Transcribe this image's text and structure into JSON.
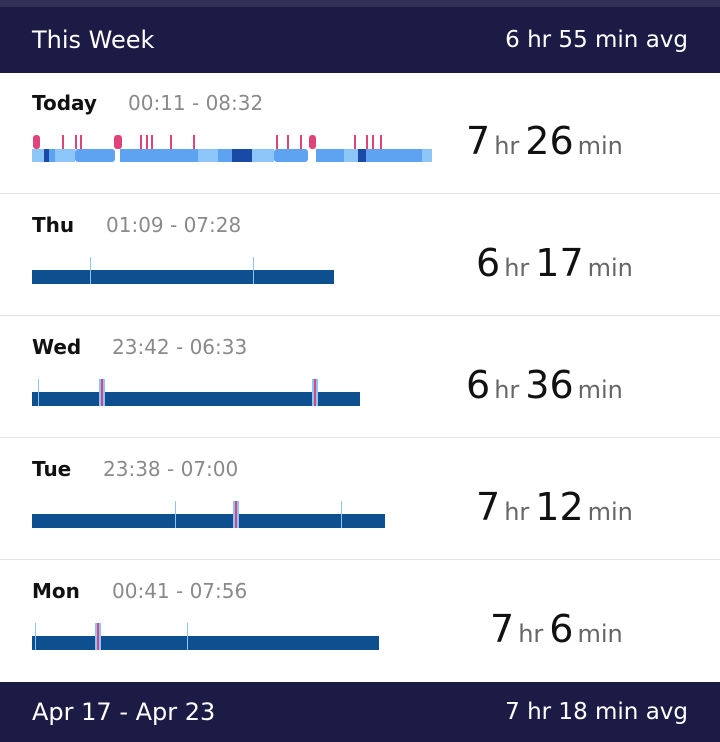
{
  "colors": {
    "header_bg": "#1c1b45",
    "top_strip": "#2f3157",
    "bar_dark": "#0e4f8f",
    "bar_light": "#5ea3f2",
    "bar_pale": "#8cc5f7",
    "bar_deep": "#1a4aa8",
    "awake_pink": "#e0427a"
  },
  "current_week": {
    "title": "This Week",
    "average": "6 hr 55 min avg"
  },
  "days": [
    {
      "id": "today",
      "name": "Today",
      "time_range": "00:11 - 08:32",
      "hours": "7",
      "minutes": "26",
      "hr_unit": "hr",
      "min_unit": "min",
      "bar_style": "stages"
    },
    {
      "id": "thu",
      "name": "Thu",
      "time_range": "01:09 - 07:28",
      "hours": "6",
      "minutes": "17",
      "hr_unit": "hr",
      "min_unit": "min",
      "bar_style": "simple"
    },
    {
      "id": "wed",
      "name": "Wed",
      "time_range": "23:42 - 06:33",
      "hours": "6",
      "minutes": "36",
      "hr_unit": "hr",
      "min_unit": "min",
      "bar_style": "simple"
    },
    {
      "id": "tue",
      "name": "Tue",
      "time_range": "23:38 - 07:00",
      "hours": "7",
      "minutes": "12",
      "hr_unit": "hr",
      "min_unit": "min",
      "bar_style": "simple"
    },
    {
      "id": "mon",
      "name": "Mon",
      "time_range": "00:41 - 07:56",
      "hours": "7",
      "minutes": "6",
      "hr_unit": "hr",
      "min_unit": "min",
      "bar_style": "simple"
    }
  ],
  "previous_week": {
    "title": "Apr 17 - Apr 23",
    "average": "7 hr 18 min avg"
  }
}
